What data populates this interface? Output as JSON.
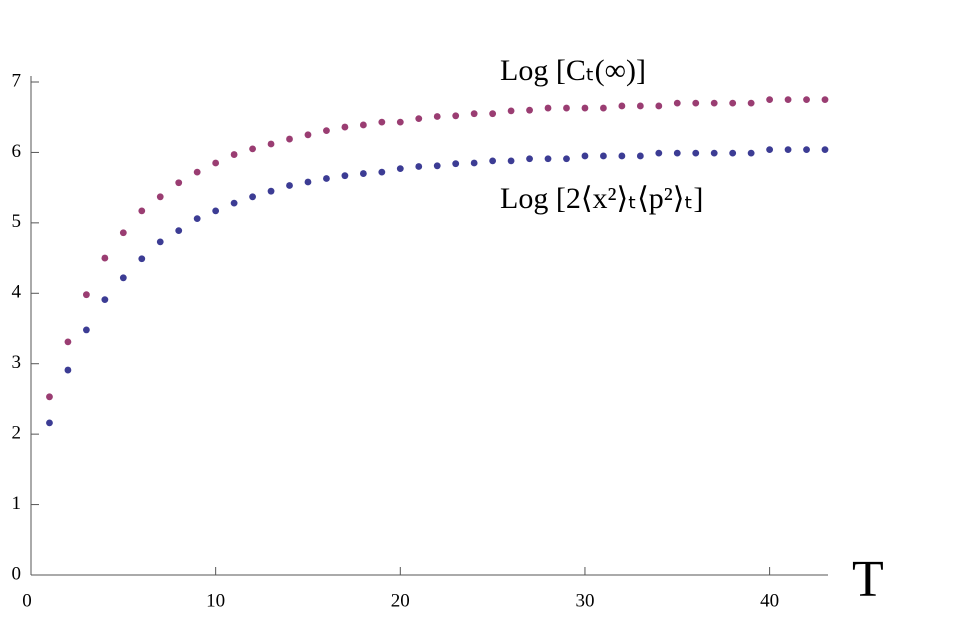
{
  "chart_data": {
    "type": "scatter",
    "x_label": "T",
    "x": [
      1,
      2,
      3,
      4,
      5,
      6,
      7,
      8,
      9,
      10,
      11,
      12,
      13,
      14,
      15,
      16,
      17,
      18,
      19,
      20,
      21,
      22,
      23,
      24,
      25,
      26,
      27,
      28,
      29,
      30,
      31,
      32,
      33,
      34,
      35,
      36,
      37,
      38,
      39,
      40,
      41,
      42,
      43
    ],
    "series": [
      {
        "name": "Log [Cₜ(∞)]",
        "color": "#9a3d72",
        "values": [
          2.53,
          3.31,
          3.98,
          4.5,
          4.86,
          5.17,
          5.37,
          5.57,
          5.72,
          5.85,
          5.97,
          6.05,
          6.12,
          6.19,
          6.25,
          6.31,
          6.36,
          6.39,
          6.43,
          6.43,
          6.48,
          6.51,
          6.52,
          6.55,
          6.55,
          6.59,
          6.6,
          6.63,
          6.63,
          6.63,
          6.63,
          6.66,
          6.66,
          6.66,
          6.7,
          6.7,
          6.7,
          6.7,
          6.7,
          6.75,
          6.75,
          6.75,
          6.75
        ]
      },
      {
        "name": "Log [2⟨x²⟩ₜ⟨p²⟩ₜ]",
        "color": "#3c3c94",
        "values": [
          2.16,
          2.91,
          3.48,
          3.91,
          4.22,
          4.49,
          4.73,
          4.89,
          5.06,
          5.17,
          5.28,
          5.37,
          5.45,
          5.53,
          5.58,
          5.63,
          5.67,
          5.7,
          5.72,
          5.77,
          5.8,
          5.81,
          5.84,
          5.85,
          5.88,
          5.88,
          5.91,
          5.91,
          5.91,
          5.95,
          5.95,
          5.95,
          5.95,
          5.99,
          5.99,
          5.99,
          5.99,
          5.99,
          5.99,
          6.04,
          6.04,
          6.04,
          6.04
        ]
      }
    ],
    "xlim": [
      0,
      43
    ],
    "ylim": [
      0,
      7
    ],
    "xticks": [
      0,
      10,
      20,
      30,
      40
    ],
    "yticks": [
      0,
      1,
      2,
      3,
      4,
      5,
      6,
      7
    ]
  }
}
